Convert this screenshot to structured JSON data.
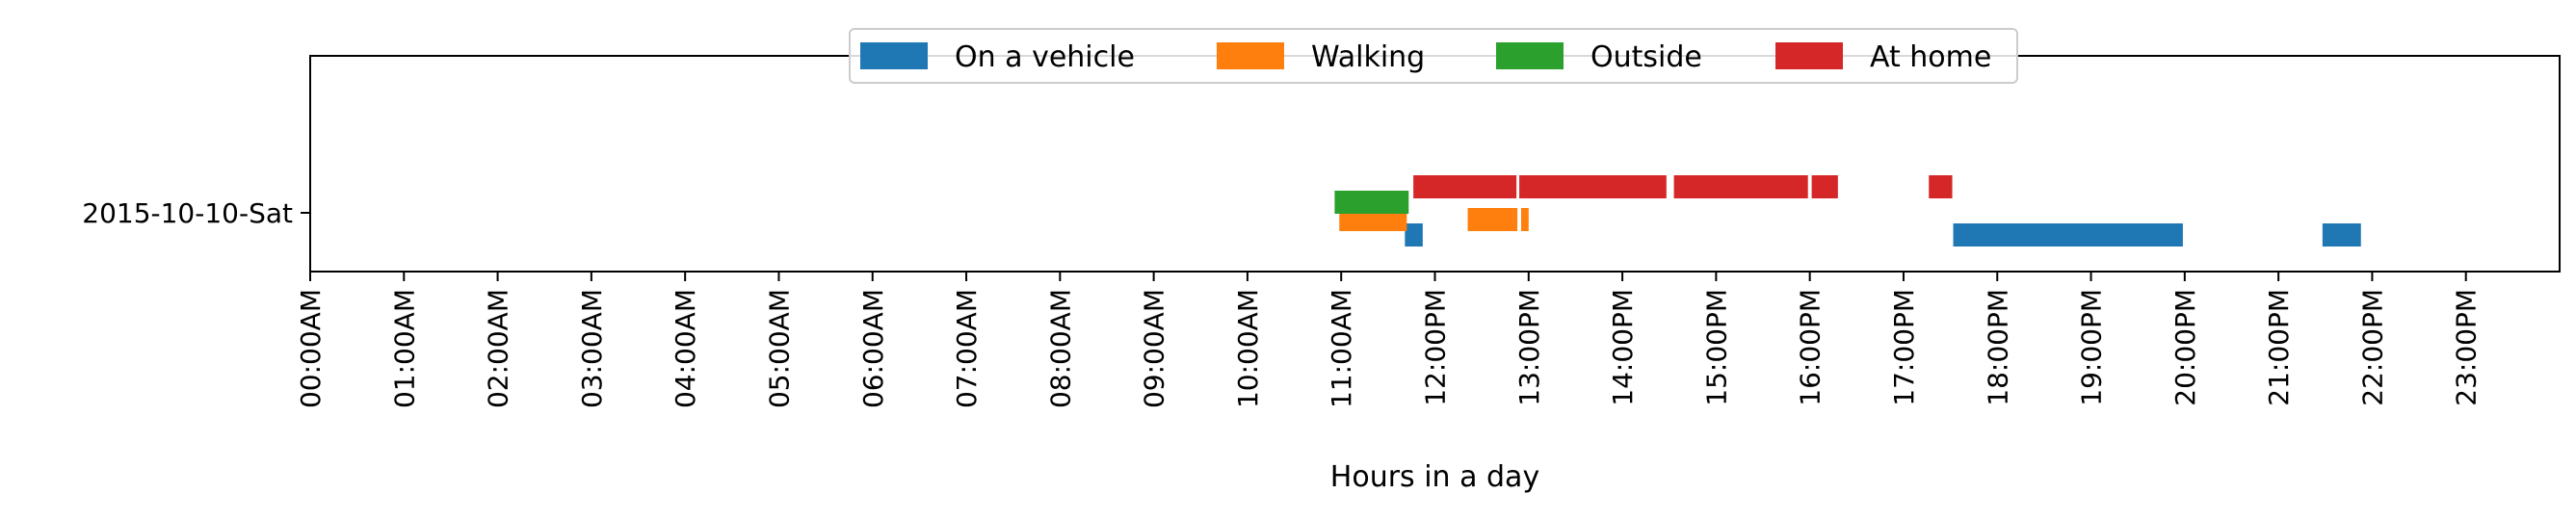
{
  "chart_data": {
    "type": "timeline",
    "title": "",
    "xlabel": "Hours in a day",
    "ylabel": "",
    "xlim": [
      0,
      24
    ],
    "x_ticks": [
      0,
      1,
      2,
      3,
      4,
      5,
      6,
      7,
      8,
      9,
      10,
      11,
      12,
      13,
      14,
      15,
      16,
      17,
      18,
      19,
      20,
      21,
      22,
      23
    ],
    "x_tick_labels": [
      "00:00AM",
      "01:00AM",
      "02:00AM",
      "03:00AM",
      "04:00AM",
      "05:00AM",
      "06:00AM",
      "07:00AM",
      "08:00AM",
      "09:00AM",
      "10:00AM",
      "11:00AM",
      "12:00PM",
      "13:00PM",
      "14:00PM",
      "15:00PM",
      "16:00PM",
      "17:00PM",
      "18:00PM",
      "19:00PM",
      "20:00PM",
      "21:00PM",
      "22:00PM",
      "23:00PM"
    ],
    "y_categories": [
      "2015-10-10-Sat"
    ],
    "legend_position": "upper center",
    "grid": false,
    "series": [
      {
        "name": "On a vehicle",
        "color": "#1f77b4",
        "intervals": [
          [
            11.68,
            11.87
          ],
          [
            17.53,
            19.98
          ],
          [
            21.47,
            21.88
          ]
        ]
      },
      {
        "name": "Walking",
        "color": "#ff7f0e",
        "intervals": [
          [
            10.98,
            11.7
          ],
          [
            12.35,
            12.88
          ],
          [
            12.92,
            13.0
          ]
        ]
      },
      {
        "name": "Outside",
        "color": "#2ca02c",
        "intervals": [
          [
            10.93,
            11.72
          ]
        ]
      },
      {
        "name": "At home",
        "color": "#d62728",
        "intervals": [
          [
            11.77,
            12.87
          ],
          [
            12.9,
            14.47
          ],
          [
            14.55,
            15.98
          ],
          [
            16.02,
            16.3
          ],
          [
            17.27,
            17.52
          ]
        ]
      }
    ]
  }
}
